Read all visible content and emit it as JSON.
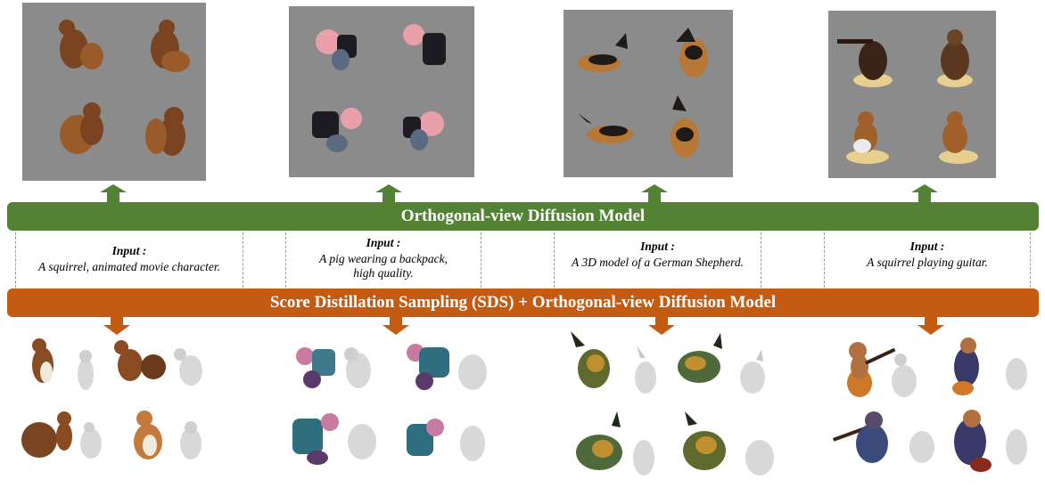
{
  "diagram": {
    "top_banner": "Orthogonal-view Diffusion Model",
    "bottom_banner": "Score Distillation Sampling (SDS) + Orthogonal-view Diffusion Model",
    "input_label": "Input :",
    "prompts": [
      "A squirrel, animated movie character.",
      "A pig wearing a backpack, high quality.",
      "A 3D model of a German Shepherd.",
      "A squirrel playing guitar."
    ],
    "colors": {
      "green": "#548235",
      "orange": "#c55a11",
      "panel_grey": "#8a8a8a"
    }
  }
}
